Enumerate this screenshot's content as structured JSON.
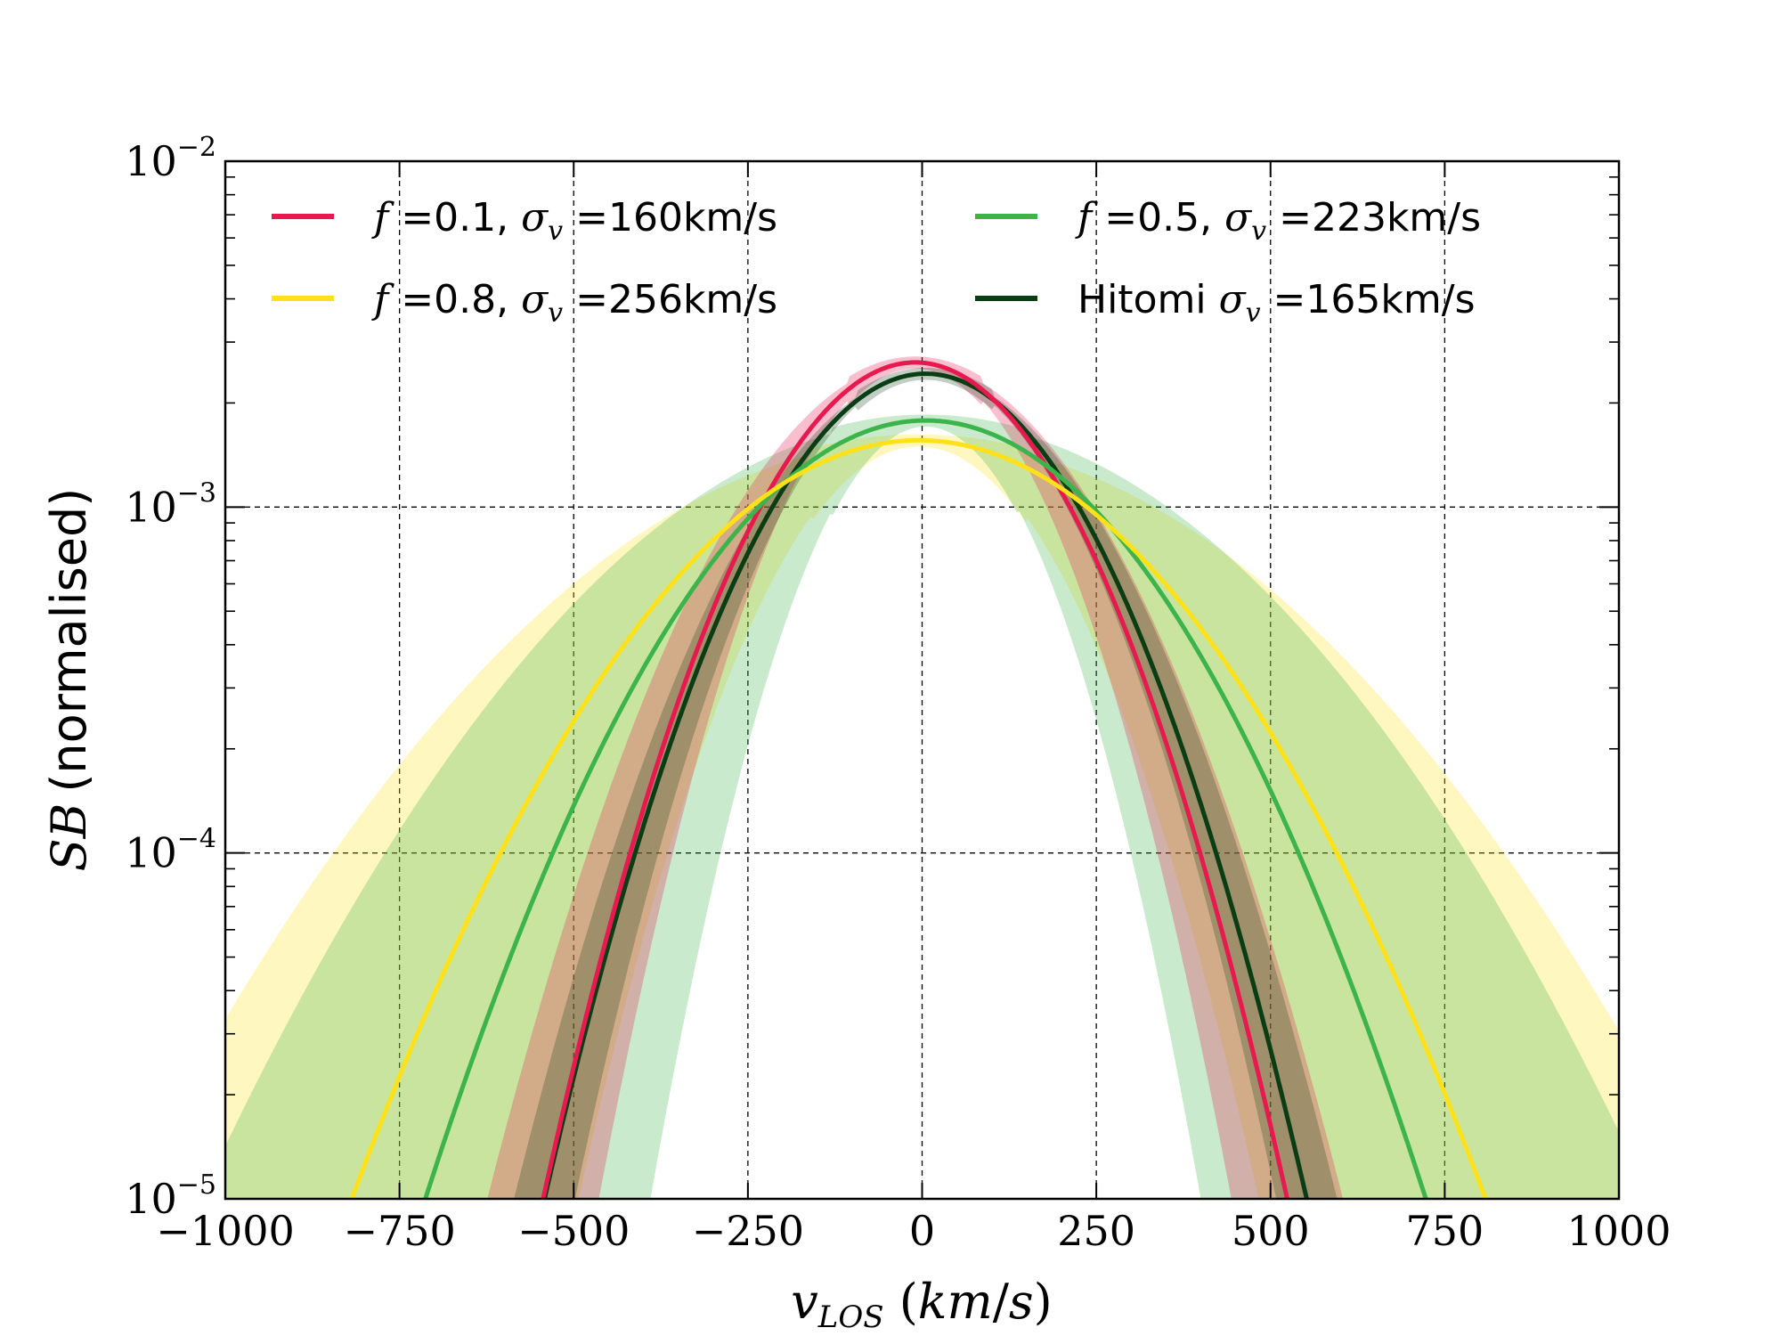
{
  "chart_data": {
    "type": "line",
    "xlabel": "v_LOS (km/s)",
    "ylabel": "SB (normalised)",
    "xlim": [
      -1000,
      1000
    ],
    "ylim": [
      1e-05,
      0.01
    ],
    "yscale": "log",
    "x_ticks": [
      -1000,
      -750,
      -500,
      -250,
      0,
      250,
      500,
      750,
      1000
    ],
    "x_tick_labels": [
      "−1000",
      "−750",
      "−500",
      "−250",
      "0",
      "250",
      "500",
      "750",
      "1000"
    ],
    "y_ticks": [
      {
        "value": 1e-05,
        "base": "10",
        "exp": "−5"
      },
      {
        "value": 0.0001,
        "base": "10",
        "exp": "−4"
      },
      {
        "value": 0.001,
        "base": "10",
        "exp": "−3"
      },
      {
        "value": 0.01,
        "base": "10",
        "exp": "−2"
      }
    ],
    "grid": true,
    "legend_position": "top",
    "series": [
      {
        "name": "f =0.1, σv =160km/s",
        "legend_sym": "f",
        "legend_val": " =0.1, ",
        "legend_sym2": "σ",
        "legend_sub": "v",
        "legend_val2": " =160km/s",
        "color": "#e8194f",
        "peak": 0.00262,
        "center": -10,
        "sigma": 160,
        "band_low": 0.85,
        "band_high": 1.15
      },
      {
        "name": "f =0.5, σv =223km/s",
        "legend_sym": "f",
        "legend_val": " =0.5, ",
        "legend_sym2": "σ",
        "legend_sub": "v",
        "legend_val2": " =223km/s",
        "color": "#3cb44b",
        "peak": 0.00178,
        "center": 5,
        "sigma": 223,
        "band_low": 0.55,
        "band_high": 1.45
      },
      {
        "name": "f =0.8, σv =256km/s",
        "legend_sym": "f",
        "legend_val": " =0.8, ",
        "legend_sym2": "σ",
        "legend_sub": "v",
        "legend_val2": " =256km/s",
        "color": "#ffe119",
        "peak": 0.00156,
        "center": -5,
        "sigma": 256,
        "band_low": 0.6,
        "band_high": 1.4
      },
      {
        "name": "Hitomi σv =165km/s",
        "legend_sym": "",
        "legend_val": "Hitomi ",
        "legend_sym2": "σ",
        "legend_sub": "v",
        "legend_val2": " =165km/s",
        "color": "#0a3d14",
        "peak": 0.00243,
        "center": 5,
        "sigma": 165,
        "band_low": 0.92,
        "band_high": 1.08
      }
    ]
  }
}
